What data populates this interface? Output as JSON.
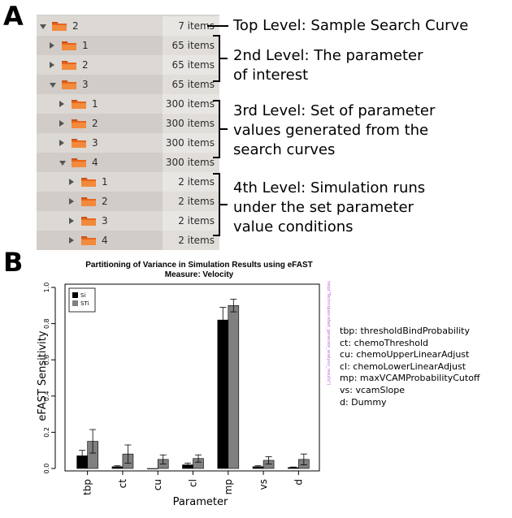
{
  "panels": {
    "a": "A",
    "b": "B"
  },
  "tree": {
    "rows": [
      {
        "label": "2",
        "count": "7 items",
        "expanded": true
      },
      {
        "label": "1",
        "count": "65 items",
        "expanded": false
      },
      {
        "label": "2",
        "count": "65 items",
        "expanded": false
      },
      {
        "label": "3",
        "count": "65 items",
        "expanded": true
      },
      {
        "label": "1",
        "count": "300 items",
        "expanded": false
      },
      {
        "label": "2",
        "count": "300 items",
        "expanded": false
      },
      {
        "label": "3",
        "count": "300 items",
        "expanded": false
      },
      {
        "label": "4",
        "count": "300 items",
        "expanded": true
      },
      {
        "label": "1",
        "count": "2 items",
        "expanded": false
      },
      {
        "label": "2",
        "count": "2 items",
        "expanded": false
      },
      {
        "label": "3",
        "count": "2 items",
        "expanded": false
      },
      {
        "label": "4",
        "count": "2 items",
        "expanded": false
      }
    ],
    "levels": [
      {
        "lines": [
          "Top Level: Sample Search Curve"
        ]
      },
      {
        "lines": [
          "2nd Level: The parameter",
          "of interest"
        ]
      },
      {
        "lines": [
          "3rd Level: Set of parameter",
          "values generated from the",
          "search curves"
        ]
      },
      {
        "lines": [
          "4th Level: Simulation runs",
          "under the set parameter",
          "value conditions"
        ]
      }
    ]
  },
  "chart": {
    "title_line1": "Partitioning of Variance in Simulation Results using eFAST",
    "title_line2": "Measure: Velocity",
    "side_note": "help(\"Techniques-efast_generate_analysis_results\")",
    "abbreviations": [
      "tbp: thresholdBindProbability",
      "ct: chemoThreshold",
      "cu: chemoUpperLinearAdjust",
      "cl: chemoLowerLinearAdjust",
      "mp: maxVCAMProbabilityCutoff",
      "vs: vcamSlope",
      "d: Dummy"
    ]
  },
  "chart_data": {
    "type": "bar",
    "title": "Partitioning of Variance in Simulation Results using eFAST",
    "subtitle": "Measure: Velocity",
    "xlabel": "Parameter",
    "ylabel": "eFAST Sensitivity",
    "ylim": [
      0,
      1.0
    ],
    "yticks": [
      0.0,
      0.2,
      0.4,
      0.6,
      0.8,
      1.0
    ],
    "ytick_labels": [
      "0.0",
      "0.2",
      "0.4",
      "0.6",
      "0.8",
      "1.0"
    ],
    "categories": [
      "tbp",
      "ct",
      "cu",
      "cl",
      "mp",
      "vs",
      "d"
    ],
    "series": [
      {
        "name": "Si",
        "color": "#000000",
        "values": [
          0.07,
          0.01,
          0.0,
          0.02,
          0.82,
          0.01,
          0.005
        ],
        "errors": [
          0.03,
          0.005,
          0.0,
          0.01,
          0.07,
          0.005,
          0.003
        ]
      },
      {
        "name": "STi",
        "color": "#808080",
        "values": [
          0.15,
          0.08,
          0.05,
          0.055,
          0.9,
          0.045,
          0.05
        ],
        "errors": [
          0.065,
          0.05,
          0.025,
          0.02,
          0.035,
          0.02,
          0.03
        ]
      }
    ],
    "legend_position": "top-left",
    "grid": false
  },
  "colors": {
    "folder_orange": "#e8651c",
    "tree_bg": "#d7d3cf",
    "side_note": "#c063d8"
  }
}
